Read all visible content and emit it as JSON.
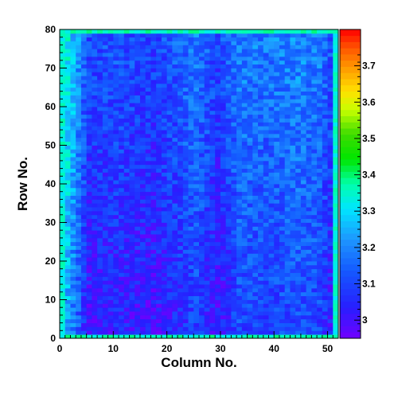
{
  "chart_data": {
    "type": "heatmap",
    "title": "",
    "xlabel": "Column No.",
    "ylabel": "Row No.",
    "xlim": [
      0,
      52
    ],
    "ylim": [
      0,
      80
    ],
    "x_ticks": [
      "0",
      "10",
      "20",
      "30",
      "40",
      "50"
    ],
    "y_ticks": [
      "0",
      "10",
      "20",
      "30",
      "40",
      "50",
      "60",
      "70",
      "80"
    ],
    "colorbar": {
      "range": [
        2.95,
        3.8
      ],
      "ticks": [
        "3",
        "3.1",
        "3.2",
        "3.3",
        "3.4",
        "3.5",
        "3.6",
        "3.7"
      ]
    },
    "grid": {
      "columns": 52,
      "rows": 80,
      "column_profile": [
        {
          "column": 0,
          "value": 3.34
        },
        {
          "column": 5,
          "value": 3.06
        },
        {
          "column": 10,
          "value": 3.08
        },
        {
          "column": 17,
          "value": 3.05
        },
        {
          "column": 21,
          "value": 3.09
        },
        {
          "column": 25,
          "value": 3.14
        },
        {
          "column": 29,
          "value": 3.05
        },
        {
          "column": 33,
          "value": 3.15
        },
        {
          "column": 38,
          "value": 3.13
        },
        {
          "column": 44,
          "value": 3.16
        },
        {
          "column": 48,
          "value": 3.14
        },
        {
          "column": 50,
          "value": 3.08
        },
        {
          "column": 51,
          "value": 3.34
        }
      ],
      "row_gradient_per_row": 0.0012,
      "top_and_bottom_edge_value": 3.36,
      "noise_amplitude": 0.07
    },
    "grid_lines": false,
    "legend": "colorbar-right"
  }
}
